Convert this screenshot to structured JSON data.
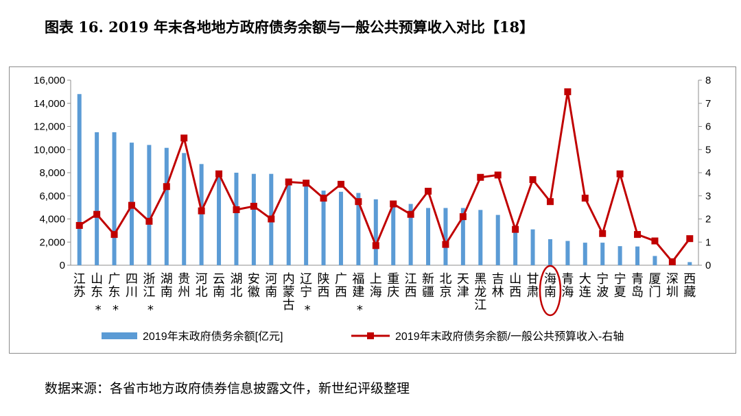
{
  "header": {
    "title": "图表 16. 2019 年末各地地方政府债务余额与一般公共预算收入对比【18】"
  },
  "footer": {
    "source": "数据来源：各省市地方政府债券信息披露文件，新世纪评级整理"
  },
  "colors": {
    "bar": "#5b9bd5",
    "line": "#c00000",
    "axis": "#8c8c8c",
    "highlight": "#c00000"
  },
  "chart_data": {
    "type": "bar",
    "categories": [
      "江苏",
      "山东",
      "广东",
      "四川",
      "浙江",
      "湖南",
      "贵州",
      "河北",
      "云南",
      "湖北",
      "安徽",
      "河南",
      "内蒙古",
      "辽宁",
      "陕西",
      "广西",
      "福建",
      "上海",
      "重庆",
      "江西",
      "新疆",
      "北京",
      "天津",
      "黑龙江",
      "吉林",
      "山西",
      "甘肃",
      "海南",
      "青海",
      "大连",
      "宁波",
      "宁夏",
      "青岛",
      "厦门",
      "深圳",
      "西藏"
    ],
    "category_markers": [
      "",
      "*",
      "*",
      "",
      "*",
      "",
      "",
      "",
      "",
      "",
      "",
      "",
      "",
      "*",
      "",
      "",
      "*",
      "",
      "",
      "",
      "",
      "",
      "",
      "",
      "",
      "",
      "",
      "",
      "",
      "",
      "",
      "",
      "",
      "",
      "",
      ""
    ],
    "highlighted_category": "海南",
    "series": [
      {
        "name": "2019年末政府债务余额[亿元]",
        "type": "bar",
        "axis": "left",
        "values": [
          14800,
          11500,
          11500,
          10600,
          10400,
          10150,
          9700,
          8750,
          8050,
          8000,
          7900,
          7900,
          7200,
          6950,
          6450,
          6350,
          6250,
          5700,
          5450,
          5300,
          4950,
          4950,
          4950,
          4780,
          4350,
          3450,
          3100,
          2250,
          2100,
          1950,
          1950,
          1650,
          1620,
          800,
          400,
          270
        ]
      },
      {
        "name": "2019年末政府债务余额/一般公共预算收入-右轴",
        "type": "line",
        "axis": "right",
        "values": [
          1.72,
          2.2,
          1.33,
          2.59,
          1.9,
          3.4,
          5.5,
          2.35,
          3.95,
          2.4,
          2.55,
          2.0,
          3.6,
          3.55,
          2.9,
          3.5,
          2.75,
          0.85,
          2.65,
          2.2,
          3.2,
          0.9,
          2.1,
          3.8,
          3.9,
          1.55,
          3.7,
          2.75,
          7.5,
          2.9,
          1.37,
          3.95,
          1.33,
          1.05,
          0.15,
          1.15
        ]
      }
    ],
    "y_left": {
      "min": 0,
      "max": 16000,
      "step": 2000,
      "ticks": [
        "0",
        "2,000",
        "4,000",
        "6,000",
        "8,000",
        "10,000",
        "12,000",
        "14,000",
        "16,000"
      ]
    },
    "y_right": {
      "min": 0,
      "max": 8,
      "step": 1,
      "ticks": [
        "0",
        "1",
        "2",
        "3",
        "4",
        "5",
        "6",
        "7",
        "8"
      ]
    },
    "legend": {
      "position": "bottom"
    },
    "grid": false
  }
}
